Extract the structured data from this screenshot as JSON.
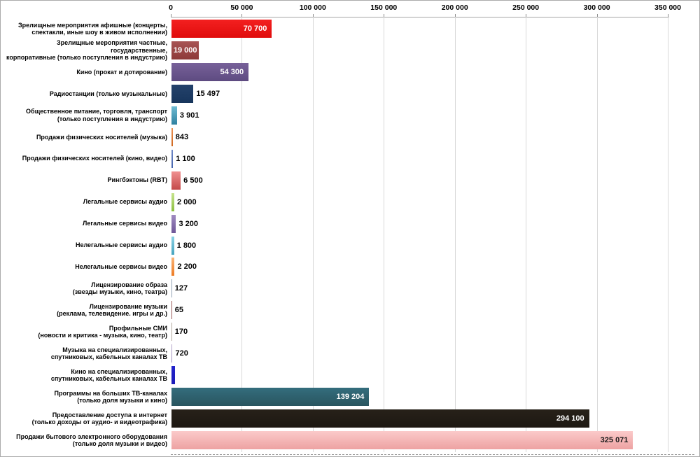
{
  "chart_data": {
    "type": "bar",
    "orientation": "horizontal",
    "title": "",
    "legend": "none",
    "grid": "vertical",
    "x_axis": {
      "position": "top",
      "min": 0,
      "max": 350000,
      "tick_step": 50000,
      "tick_labels": [
        "0",
        "50 000",
        "100 000",
        "150 000",
        "200 000",
        "250 000",
        "300 000",
        "350 000"
      ]
    },
    "rows": [
      {
        "label": "Зрелищные мероприятия афишные (концерты,\nспектакли, иные шоу в живом исполнении)",
        "value": 70700,
        "value_label": "70 700",
        "label_placement": "inside",
        "label_color": "#FFFFFF",
        "color_top": "#F32020",
        "color_bottom": "#E00C0C"
      },
      {
        "label": "Зрелищные мероприятия частные, государственные,\nкорпоративные (только поступления в индустрию)",
        "value": 19000,
        "value_label": "19 000",
        "label_placement": "inside",
        "label_color": "#FFFFFF",
        "color_top": "#A85454",
        "color_bottom": "#8D3A38"
      },
      {
        "label": "Кино (прокат и дотирование)",
        "value": 54300,
        "value_label": "54 300",
        "label_placement": "inside",
        "label_color": "#FFFFFF",
        "color_top": "#786199",
        "color_bottom": "#5E4B81"
      },
      {
        "label": "Радиостанции (только музыкальные)",
        "value": 15497,
        "value_label": "15 497",
        "label_placement": "outside",
        "label_color": "#000000",
        "color_top": "#24426B",
        "color_bottom": "#17355C"
      },
      {
        "label": "Общественное питание, торговля, транспорт\n(только поступления в индустрию)",
        "value": 3901,
        "value_label": "3 901",
        "label_placement": "outside",
        "label_color": "#000000",
        "color_top": "#6FBBD3",
        "color_bottom": "#2F81A0"
      },
      {
        "label": "Продажи физических носителей (музыка)",
        "value": 843,
        "value_label": "843",
        "label_placement": "outside",
        "label_color": "#000000",
        "color_top": "#EC9255",
        "color_bottom": "#CE671E"
      },
      {
        "label": "Продажи физических носителей (кино, видео)",
        "value": 1100,
        "value_label": "1 100",
        "label_placement": "outside",
        "label_color": "#000000",
        "color_top": "#7189C7",
        "color_bottom": "#4565AE"
      },
      {
        "label": "Рингбэктоны (RBT)",
        "value": 6500,
        "value_label": "6 500",
        "label_placement": "outside",
        "label_color": "#000000",
        "color_top": "#F09090",
        "color_bottom": "#C44A4A"
      },
      {
        "label": "Легальные сервисы аудио",
        "value": 2000,
        "value_label": "2 000",
        "label_placement": "outside",
        "label_color": "#000000",
        "color_top": "#C6E48D",
        "color_bottom": "#8CBE40"
      },
      {
        "label": "Легальные сервисы видео",
        "value": 3200,
        "value_label": "3 200",
        "label_placement": "outside",
        "label_color": "#000000",
        "color_top": "#A18BC2",
        "color_bottom": "#6E5697"
      },
      {
        "label": "Нелегальные сервисы аудио",
        "value": 1800,
        "value_label": "1 800",
        "label_placement": "outside",
        "label_color": "#000000",
        "color_top": "#8AD2E5",
        "color_bottom": "#46A3BE"
      },
      {
        "label": "Нелегальные сервисы видео",
        "value": 2200,
        "value_label": "2 200",
        "label_placement": "outside",
        "label_color": "#000000",
        "color_top": "#FAB377",
        "color_bottom": "#ED7B23"
      },
      {
        "label": "Лицензирование образа\n(звезды музыки, кино, театра)",
        "value": 127,
        "value_label": "127",
        "label_placement": "outside",
        "label_color": "#000000",
        "color_top": "#93A2B5",
        "color_bottom": "#93A2B5"
      },
      {
        "label": "Лицензирование музыки\n(реклама, телевидение. игры и др.)",
        "value": 65,
        "value_label": "65",
        "label_placement": "outside",
        "label_color": "#000000",
        "color_top": "#9A5A58",
        "color_bottom": "#9A5A58"
      },
      {
        "label": "Профильные СМИ\n(новости и критика - музыка, кино, театр)",
        "value": 170,
        "value_label": "170",
        "label_placement": "outside",
        "label_color": "#000000",
        "color_top": "#B3A89E",
        "color_bottom": "#B3A89E"
      },
      {
        "label": "Музыка на специализированных,\nспутниковых, кабельных каналах ТВ",
        "value": 720,
        "value_label": "720",
        "label_placement": "outside",
        "label_color": "#000000",
        "color_top": "#B7A8CC",
        "color_bottom": "#9A88BA"
      },
      {
        "label": "Кино на специализированных,\nспутниковых, кабельных каналах ТВ",
        "value": 2300,
        "value_label": "",
        "label_placement": "none",
        "label_color": "#000000",
        "color_top": "#2323CC",
        "color_bottom": "#1B1BB8"
      },
      {
        "label": "Программы на больших ТВ-каналах\n(только доля музыки и кино)",
        "value": 139204,
        "value_label": "139 204",
        "label_placement": "inside",
        "label_color": "#FFFFFF",
        "color_top": "#346D7D",
        "color_bottom": "#29555F"
      },
      {
        "label": "Предоставление доступа в интернет\n(только доходы от аудио- и видеотрафика)",
        "value": 294100,
        "value_label": "294 100",
        "label_placement": "inside",
        "label_color": "#FFFFFF",
        "color_top": "#272119",
        "color_bottom": "#1D1812"
      },
      {
        "label": "Продажи бытового электронного оборудования\n(только доля музыки и видео)",
        "value": 325071,
        "value_label": "325 071",
        "label_placement": "inside",
        "label_color": "#1A1A1A",
        "color_top": "#FBCACA",
        "color_bottom": "#EDA2A2"
      }
    ]
  },
  "style_colors": {
    "gridline": "#D8D8D8",
    "axis_line": "#A6A6A6",
    "tick": "#8C8C8C",
    "frame_border": "#ABABAB",
    "background": "#FFFFFF"
  }
}
